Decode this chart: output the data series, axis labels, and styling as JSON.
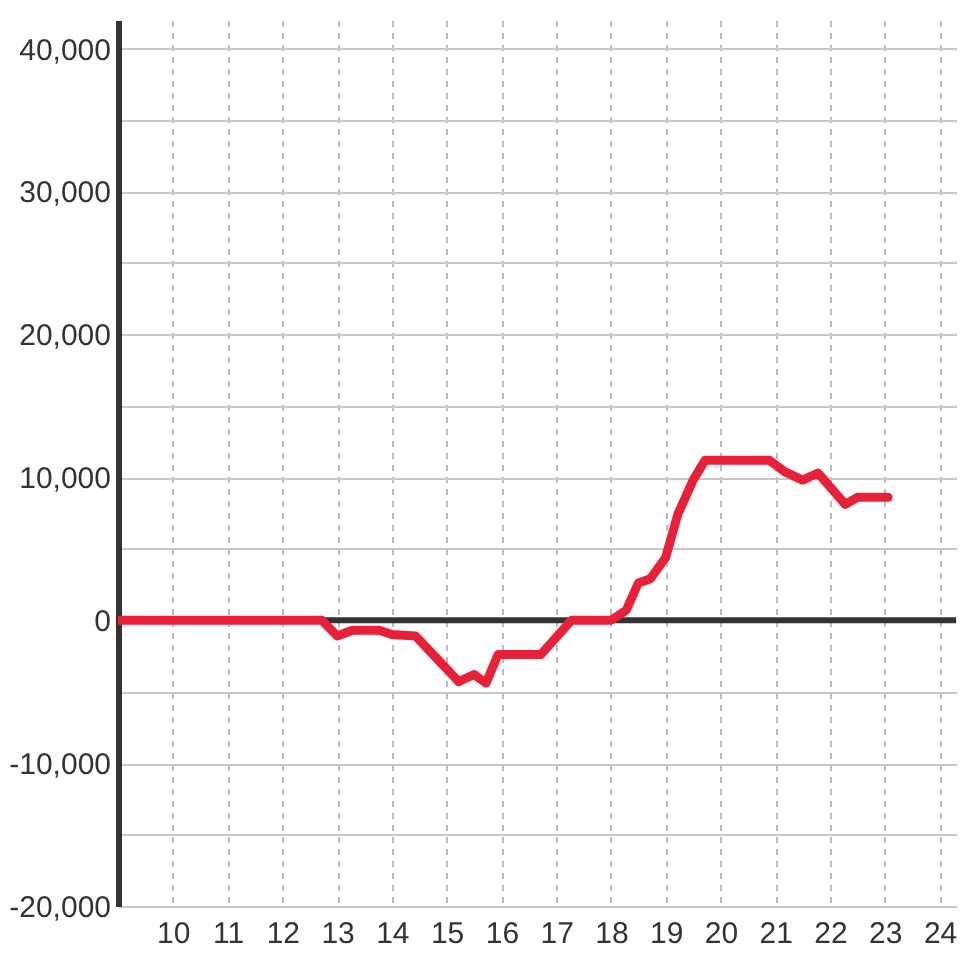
{
  "chart_data": {
    "type": "line",
    "x": [
      9.0,
      12.72,
      13.0,
      13.28,
      13.77,
      14.0,
      14.43,
      15.22,
      15.5,
      15.72,
      15.94,
      16.72,
      17.28,
      18.0,
      18.28,
      18.5,
      18.72,
      19.0,
      19.22,
      19.5,
      19.72,
      20.89,
      21.17,
      21.5,
      21.78,
      22.28,
      22.5,
      23.06
    ],
    "series": [
      {
        "color": "#e8213a",
        "values": [
          0,
          0,
          -1100,
          -700,
          -700,
          -1000,
          -1100,
          -4300,
          -3800,
          -4400,
          -2400,
          -2400,
          0,
          0,
          700,
          2600,
          2900,
          4400,
          7400,
          9800,
          11200,
          11200,
          10400,
          9800,
          10300,
          8100,
          8600,
          8600
        ]
      }
    ],
    "xlim": [
      9,
      24.3
    ],
    "xticks": [
      10,
      11,
      12,
      13,
      14,
      15,
      16,
      17,
      18,
      19,
      20,
      21,
      22,
      23,
      24
    ],
    "ylim": [
      -20000,
      42000
    ],
    "yticks": [
      {
        "value": -20000,
        "label": "-20,000"
      },
      {
        "value": -15000,
        "label": null
      },
      {
        "value": -10000,
        "label": "-10,000"
      },
      {
        "value": -5000,
        "label": null
      },
      {
        "value": 0,
        "label": "0"
      },
      {
        "value": 5000,
        "label": null
      },
      {
        "value": 10000,
        "label": "10,000"
      },
      {
        "value": 15000,
        "label": null
      },
      {
        "value": 20000,
        "label": "20,000"
      },
      {
        "value": 25000,
        "label": null
      },
      {
        "value": 30000,
        "label": "30,000"
      },
      {
        "value": 35000,
        "label": null
      },
      {
        "value": 40000,
        "label": "40,000"
      }
    ],
    "ref_lines": [
      {
        "axis": "y",
        "value": 0,
        "color": "#333333"
      }
    ],
    "grid": true,
    "line_style": "solid"
  }
}
